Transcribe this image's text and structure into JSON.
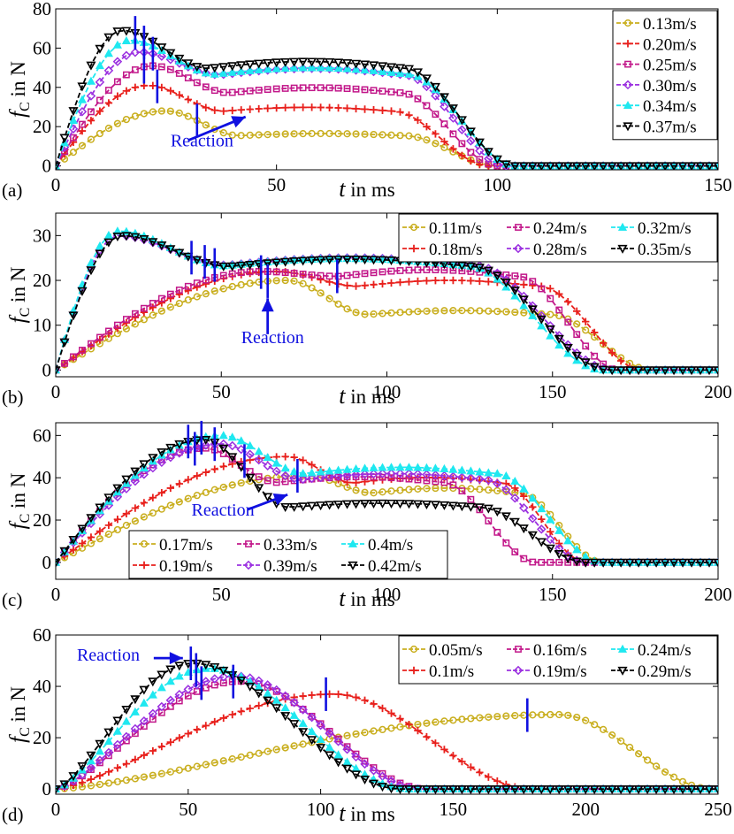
{
  "style": {
    "series_colors": [
      "#C9AE1E",
      "#E8201C",
      "#C2188A",
      "#9B30E0",
      "#1FE8F0",
      "#000000"
    ],
    "marker_shapes": [
      "circle",
      "plus",
      "square",
      "diamond",
      "triangle-up",
      "triangle-down"
    ],
    "annotation_color": "#1010E0"
  },
  "chart_data": [
    {
      "panel_label": "(a)",
      "type": "line",
      "xlabel_italic": "t",
      "xlabel_rest": " in ms",
      "ylabel_main": "f",
      "ylabel_sub": "C",
      "ylabel_rest": " in N",
      "xlim": [
        0,
        150
      ],
      "ylim": [
        -2,
        80
      ],
      "xticks": [
        0,
        50,
        100,
        150
      ],
      "yticks": [
        0,
        20,
        40,
        60,
        80
      ],
      "legend_layout": "right-column",
      "legend_order": [
        0,
        1,
        2,
        3,
        4,
        5
      ],
      "series": [
        {
          "name": "0.13m/s",
          "peak": 28,
          "t_peak": 25,
          "t_end": 100,
          "plateau": 0.55,
          "reaction_t": 32
        },
        {
          "name": "0.20m/s",
          "peak": 41,
          "t_peak": 21,
          "t_end": 98,
          "plateau": 0.68,
          "reaction_t": 23
        },
        {
          "name": "0.25m/s",
          "peak": 51,
          "t_peak": 22,
          "t_end": 100,
          "plateau": 0.73,
          "reaction_t": 20
        },
        {
          "name": "0.30m/s",
          "peak": 58,
          "t_peak": 19,
          "t_end": 102,
          "plateau": 0.8,
          "reaction_t": 22
        },
        {
          "name": "0.34m/s",
          "peak": 64,
          "t_peak": 17,
          "t_end": 104,
          "plateau": 0.73,
          "reaction_t": 20
        },
        {
          "name": "0.37m/s",
          "peak": 69,
          "t_peak": 15,
          "t_end": 104,
          "plateau": 0.72,
          "reaction_t": 18
        }
      ],
      "reaction_label": "Reaction",
      "reaction_label_at": [
        26,
        10
      ],
      "reaction_arrow": [
        [
          30,
          13
        ],
        [
          43,
          25
        ]
      ]
    },
    {
      "panel_label": "(b)",
      "type": "line",
      "xlabel_italic": "t",
      "xlabel_rest": " in ms",
      "ylabel_main": "f",
      "ylabel_sub": "C",
      "ylabel_rest": " in N",
      "xlim": [
        0,
        200
      ],
      "ylim": [
        -1.5,
        35
      ],
      "xticks": [
        0,
        50,
        100,
        150,
        200
      ],
      "yticks": [
        0,
        10,
        20,
        30
      ],
      "legend_layout": "top-right-grid",
      "legend_order": [
        0,
        2,
        4,
        1,
        3,
        5
      ],
      "series": [
        {
          "name": "0.11m/s",
          "peak": 20,
          "t_peak": 70,
          "t_end": 180,
          "plateau": 0.62,
          "reaction_t": 64
        },
        {
          "name": "0.18m/s",
          "peak": 22,
          "t_peak": 67,
          "t_end": 177,
          "plateau": 0.85,
          "reaction_t": 62
        },
        {
          "name": "0.24m/s",
          "peak": 22,
          "t_peak": 62,
          "t_end": 170,
          "plateau": 0.95,
          "reaction_t": 85
        },
        {
          "name": "0.28m/s",
          "peak": 30,
          "t_peak": 19,
          "t_end": 168,
          "plateau": 0.78,
          "reaction_t": 45
        },
        {
          "name": "0.32m/s",
          "peak": 31,
          "t_peak": 19,
          "t_end": 165,
          "plateau": 0.75,
          "reaction_t": 41
        },
        {
          "name": "0.35m/s",
          "peak": 30,
          "t_peak": 20,
          "t_end": 167,
          "plateau": 0.77,
          "reaction_t": 48
        }
      ],
      "reaction_label": "Reaction",
      "reaction_label_at": [
        56,
        6
      ],
      "reaction_arrow": [
        [
          64,
          8
        ],
        [
          64,
          16
        ]
      ]
    },
    {
      "panel_label": "(c)",
      "type": "line",
      "xlabel_italic": "t",
      "xlabel_rest": " in ms",
      "ylabel_main": "f",
      "ylabel_sub": "C",
      "ylabel_rest": " in N",
      "xlim": [
        0,
        200
      ],
      "ylim": [
        -8,
        66
      ],
      "xticks": [
        0,
        50,
        100,
        150,
        200
      ],
      "yticks": [
        0,
        20,
        40,
        60
      ],
      "legend_layout": "bottom-left-grid",
      "legend_order": [
        0,
        2,
        4,
        1,
        3,
        5
      ],
      "series": [
        {
          "name": "0.17m/s",
          "peak": 41,
          "t_peak": 76,
          "t_end": 165,
          "plateau": 0.8,
          "reaction_t": 73
        },
        {
          "name": "0.19m/s",
          "peak": 50,
          "t_peak": 70,
          "t_end": 160,
          "plateau": 0.75,
          "reaction_t": 57
        },
        {
          "name": "0.33m/s",
          "peak": 54,
          "t_peak": 45,
          "t_end": 145,
          "plateau": 0.7,
          "reaction_t": 42
        },
        {
          "name": "0.39m/s",
          "peak": 56,
          "t_peak": 50,
          "t_end": 160,
          "plateau": 0.7,
          "reaction_t": 48
        },
        {
          "name": "0.4m/s",
          "peak": 60,
          "t_peak": 50,
          "t_end": 165,
          "plateau": 0.7,
          "reaction_t": 44
        },
        {
          "name": "0.42m/s",
          "peak": 58,
          "t_peak": 45,
          "t_end": 160,
          "plateau": 0.45,
          "reaction_t": 40
        }
      ],
      "reaction_label": "Reaction",
      "reaction_label_at": [
        41,
        22
      ],
      "reaction_arrow": [
        [
          58,
          25
        ],
        [
          70,
          32
        ]
      ]
    },
    {
      "panel_label": "(d)",
      "type": "line",
      "xlabel_italic": "t",
      "xlabel_rest": " in ms",
      "ylabel_main": "f",
      "ylabel_sub": "C",
      "ylabel_rest": " in N",
      "xlim": [
        0,
        250
      ],
      "ylim": [
        -2,
        60
      ],
      "xticks": [
        0,
        50,
        100,
        150,
        200,
        250
      ],
      "yticks": [
        0,
        20,
        40,
        60
      ],
      "legend_layout": "top-right-grid",
      "legend_order": [
        0,
        2,
        4,
        1,
        3,
        5
      ],
      "series": [
        {
          "name": "0.05m/s",
          "peak": 29,
          "t_peak": 190,
          "t_end": 248,
          "plateau": 0.0,
          "reaction_t": 178
        },
        {
          "name": "0.1m/s",
          "peak": 37,
          "t_peak": 105,
          "t_end": 180,
          "plateau": 0.0,
          "reaction_t": 102
        },
        {
          "name": "0.16m/s",
          "peak": 42,
          "t_peak": 70,
          "t_end": 140,
          "plateau": 0.0,
          "reaction_t": 67
        },
        {
          "name": "0.19m/s",
          "peak": 44,
          "t_peak": 68,
          "t_end": 138,
          "plateau": 0.0,
          "reaction_t": 55
        },
        {
          "name": "0.24m/s",
          "peak": 47,
          "t_peak": 58,
          "t_end": 133,
          "plateau": 0.0,
          "reaction_t": 53
        },
        {
          "name": "0.29m/s",
          "peak": 49,
          "t_peak": 52,
          "t_end": 130,
          "plateau": 0.0,
          "reaction_t": 51
        }
      ],
      "reaction_label": "Reaction",
      "reaction_label_at": [
        8,
        50
      ],
      "reaction_arrow": [
        [
          37,
          51
        ],
        [
          48,
          51
        ]
      ]
    }
  ]
}
